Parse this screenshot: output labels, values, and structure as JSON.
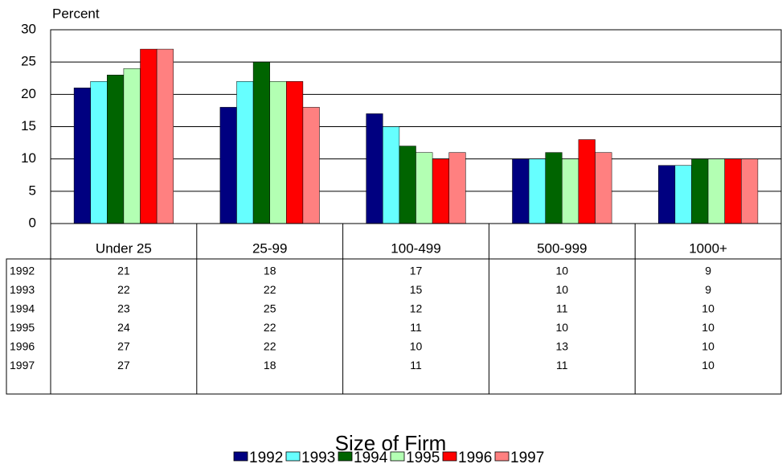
{
  "chart_data": {
    "type": "bar",
    "title": "Size of Firm",
    "y_label": "Percent",
    "categories": [
      "Under 25",
      "25-99",
      "100-499",
      "500-999",
      "1000+"
    ],
    "series": [
      {
        "name": "1992",
        "color": "#000080",
        "values": [
          21,
          18,
          17,
          10,
          9
        ]
      },
      {
        "name": "1993",
        "color": "#66ffff",
        "values": [
          22,
          22,
          15,
          10,
          9
        ]
      },
      {
        "name": "1994",
        "color": "#006400",
        "values": [
          23,
          25,
          12,
          11,
          10
        ]
      },
      {
        "name": "1995",
        "color": "#b3ffb3",
        "values": [
          24,
          22,
          11,
          10,
          10
        ]
      },
      {
        "name": "1996",
        "color": "#ff0000",
        "values": [
          27,
          22,
          10,
          13,
          10
        ]
      },
      {
        "name": "1997",
        "color": "#ff8080",
        "values": [
          27,
          18,
          11,
          11,
          10
        ]
      }
    ],
    "ylim": [
      0,
      30
    ],
    "yticks": [
      0,
      5,
      10,
      15,
      20,
      25,
      30
    ],
    "grid": true
  }
}
